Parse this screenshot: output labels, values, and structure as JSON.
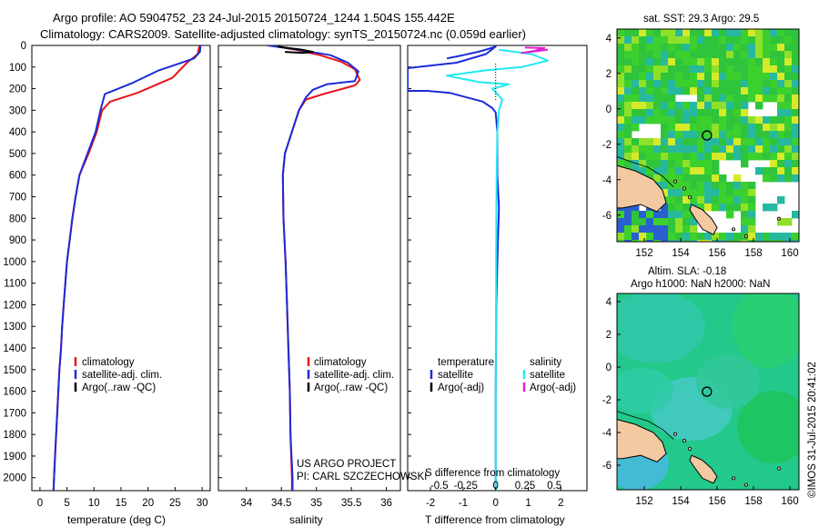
{
  "header": {
    "line1": "Argo profile: AO 5904752_23 24-Jul-2015 20150724_1244 1.504S 155.442E",
    "line2": "Climatology: CARS2009. Satellite-adjusted climatology: synTS_20150724.nc (0.059d earlier)"
  },
  "colors": {
    "climatology": "#e8141a",
    "satellite": "#1c2bd6",
    "argo": "#000000",
    "sal_satellite": "#22e8f0",
    "sal_argo": "#e020d0",
    "land": "#f2c9a0"
  },
  "depth_axis": {
    "ticks": [
      0,
      100,
      200,
      300,
      400,
      500,
      600,
      700,
      800,
      900,
      1000,
      1100,
      1200,
      1300,
      1400,
      1500,
      1600,
      1700,
      1800,
      1900,
      2000
    ]
  },
  "chart_data": [
    {
      "type": "line",
      "name": "temperature",
      "xlabel": "temperature (deg C)",
      "xlim": [
        -1.5,
        31.5
      ],
      "xticks": [
        0,
        5,
        10,
        15,
        20,
        25,
        30
      ],
      "ylim": [
        0,
        2060
      ],
      "legend": [
        "climatology",
        "satellite-adj. clim.",
        "Argo(..raw -QC)"
      ],
      "series": [
        {
          "name": "climatology",
          "color_key": "climatology",
          "points": [
            [
              29.5,
              0
            ],
            [
              29.2,
              40
            ],
            [
              27.2,
              80
            ],
            [
              24.5,
              150
            ],
            [
              18,
              220
            ],
            [
              13,
              260
            ],
            [
              11.5,
              300
            ],
            [
              10.5,
              400
            ],
            [
              9,
              500
            ],
            [
              7.3,
              600
            ],
            [
              6.6,
              700
            ],
            [
              6,
              800
            ],
            [
              5.5,
              900
            ],
            [
              5,
              1000
            ],
            [
              4.7,
              1100
            ],
            [
              4.4,
              1200
            ],
            [
              4.1,
              1300
            ],
            [
              3.9,
              1400
            ],
            [
              3.6,
              1500
            ],
            [
              3.4,
              1600
            ],
            [
              3.2,
              1700
            ],
            [
              3,
              1800
            ],
            [
              2.8,
              1900
            ],
            [
              2.6,
              2000
            ],
            [
              2.5,
              2060
            ]
          ]
        },
        {
          "name": "satellite-adj. clim.",
          "color_key": "satellite",
          "points": [
            [
              29.7,
              0
            ],
            [
              29.6,
              30
            ],
            [
              28.5,
              60
            ],
            [
              25,
              90
            ],
            [
              22,
              115
            ],
            [
              17,
              175
            ],
            [
              12,
              225
            ],
            [
              11.2,
              300
            ],
            [
              10.3,
              400
            ],
            [
              8.8,
              500
            ],
            [
              7.3,
              600
            ],
            [
              6.6,
              700
            ],
            [
              6,
              800
            ],
            [
              5.5,
              900
            ],
            [
              5,
              1000
            ],
            [
              4.7,
              1100
            ],
            [
              4.4,
              1200
            ],
            [
              4.1,
              1300
            ],
            [
              3.9,
              1400
            ],
            [
              3.6,
              1500
            ],
            [
              3.4,
              1600
            ],
            [
              3.2,
              1700
            ],
            [
              3,
              1800
            ],
            [
              2.8,
              1900
            ],
            [
              2.6,
              2000
            ],
            [
              2.5,
              2060
            ]
          ]
        }
      ]
    },
    {
      "type": "line",
      "name": "salinity",
      "xlabel": "salinity",
      "xlim": [
        33.6,
        36.2
      ],
      "xticks": [
        34,
        34.5,
        35,
        35.5,
        36
      ],
      "ylim": [
        0,
        2060
      ],
      "legend": [
        "climatology",
        "satellite-adj. clim.",
        "Argo(..raw -QC)"
      ],
      "series": [
        {
          "name": "climatology",
          "color_key": "climatology",
          "points": [
            [
              34.35,
              0
            ],
            [
              34.7,
              20
            ],
            [
              35.05,
              45
            ],
            [
              35.35,
              75
            ],
            [
              35.55,
              110
            ],
            [
              35.62,
              160
            ],
            [
              35.55,
              185
            ],
            [
              35.1,
              225
            ],
            [
              34.85,
              250
            ],
            [
              34.75,
              300
            ],
            [
              34.65,
              400
            ],
            [
              34.55,
              500
            ],
            [
              34.52,
              600
            ],
            [
              34.53,
              800
            ],
            [
              34.56,
              1000
            ],
            [
              34.58,
              1200
            ],
            [
              34.6,
              1400
            ],
            [
              34.62,
              1600
            ],
            [
              34.63,
              1800
            ],
            [
              34.65,
              2000
            ],
            [
              34.65,
              2060
            ]
          ]
        },
        {
          "name": "satellite-adj. clim.",
          "color_key": "satellite",
          "points": [
            [
              34.3,
              0
            ],
            [
              34.65,
              15
            ],
            [
              35.2,
              45
            ],
            [
              35.45,
              80
            ],
            [
              35.6,
              120
            ],
            [
              35.55,
              165
            ],
            [
              35.15,
              180
            ],
            [
              34.95,
              205
            ],
            [
              34.85,
              240
            ],
            [
              34.75,
              300
            ],
            [
              34.65,
              400
            ],
            [
              34.55,
              500
            ],
            [
              34.52,
              600
            ],
            [
              34.53,
              800
            ],
            [
              34.56,
              1000
            ],
            [
              34.58,
              1200
            ],
            [
              34.6,
              1400
            ],
            [
              34.62,
              1600
            ],
            [
              34.63,
              1800
            ],
            [
              34.66,
              2000
            ],
            [
              34.66,
              2060
            ]
          ]
        },
        {
          "name": "Argo(..raw -QC)",
          "color_key": "argo",
          "points": [
            [
              34.45,
              5
            ],
            [
              34.6,
              12
            ],
            [
              34.8,
              20
            ],
            [
              34.95,
              30
            ],
            [
              34.8,
              35
            ],
            [
              34.55,
              30
            ]
          ]
        }
      ]
    },
    {
      "type": "line",
      "name": "difference",
      "xlabel": "T difference from climatology",
      "xlabel2": "S difference from climatology",
      "xlim": [
        -2.7,
        2.8
      ],
      "xticks": [
        -2,
        -1,
        0,
        1,
        2
      ],
      "s_tick_labels": [
        "-0.5",
        "-0.25",
        "0",
        "0.25",
        "0.5"
      ],
      "ylim": [
        0,
        2060
      ],
      "legend_temperature": [
        "temperature",
        "satellite",
        "Argo(-adj)"
      ],
      "legend_salinity": [
        "salinity",
        "satellite",
        "Argo(-adj)"
      ],
      "series": [
        {
          "name": "T satellite",
          "color_key": "satellite",
          "points": [
            [
              -1.5,
              60
            ],
            [
              -1.0,
              45
            ],
            [
              -0.55,
              30
            ],
            [
              -0.2,
              15
            ],
            [
              0,
              5
            ],
            [
              -0.3,
              40
            ],
            [
              -1.2,
              80
            ],
            [
              -2.7,
              105
            ],
            [
              -2.7,
              210
            ],
            [
              -2.1,
              210
            ],
            [
              -1.4,
              220
            ],
            [
              -0.4,
              260
            ],
            [
              -0.1,
              290
            ],
            [
              0,
              310
            ],
            [
              0.05,
              400
            ],
            [
              0.05,
              600
            ],
            [
              0.1,
              750
            ],
            [
              0.07,
              900
            ],
            [
              0.02,
              1200
            ],
            [
              0,
              1600
            ],
            [
              0,
              2060
            ]
          ]
        },
        {
          "name": "S satellite",
          "color_key": "sal_satellite",
          "points": [
            [
              0.1,
              20
            ],
            [
              1.1,
              40
            ],
            [
              1.6,
              70
            ],
            [
              0.8,
              100
            ],
            [
              -0.3,
              115
            ],
            [
              -1.5,
              140
            ],
            [
              -0.5,
              170
            ],
            [
              0.4,
              180
            ],
            [
              -0.1,
              200
            ],
            [
              0.2,
              250
            ],
            [
              0.1,
              300
            ],
            [
              0.05,
              400
            ],
            [
              0.03,
              600
            ],
            [
              0.02,
              800
            ],
            [
              0.01,
              1200
            ],
            [
              0,
              1600
            ],
            [
              0,
              2060
            ]
          ]
        },
        {
          "name": "S Argo",
          "color_key": "sal_argo",
          "points": [
            [
              0.9,
              10
            ],
            [
              1.5,
              12
            ],
            [
              1.2,
              25
            ],
            [
              0.8,
              35
            ],
            [
              1.6,
              20
            ]
          ]
        }
      ]
    },
    {
      "type": "heatmap",
      "name": "sst-map",
      "title": "sat. SST: 29.3 Argo: 29.5",
      "xticks": [
        152,
        154,
        156,
        158,
        160
      ],
      "yticks": [
        4,
        2,
        0,
        -2,
        -4,
        -6
      ],
      "xlim": [
        150.5,
        160.5
      ],
      "ylim": [
        -7.5,
        4.5
      ],
      "marker": [
        155.442,
        -1.504
      ]
    },
    {
      "type": "heatmap",
      "name": "sla-map",
      "title_line1": "Altim. SLA: -0.18",
      "title_line2": "Argo h1000: NaN h2000: NaN",
      "xticks": [
        152,
        154,
        156,
        158,
        160
      ],
      "yticks": [
        4,
        2,
        0,
        -2,
        -4,
        -6
      ],
      "xlim": [
        150.5,
        160.5
      ],
      "ylim": [
        -7.5,
        4.5
      ],
      "marker": [
        155.442,
        -1.504
      ]
    }
  ],
  "annotations": {
    "project": "US ARGO PROJECT",
    "pi": "PI: CARL SZCZECHOWSKI",
    "credit": "©IMOS 31-Jul-2015 20:41:02"
  }
}
